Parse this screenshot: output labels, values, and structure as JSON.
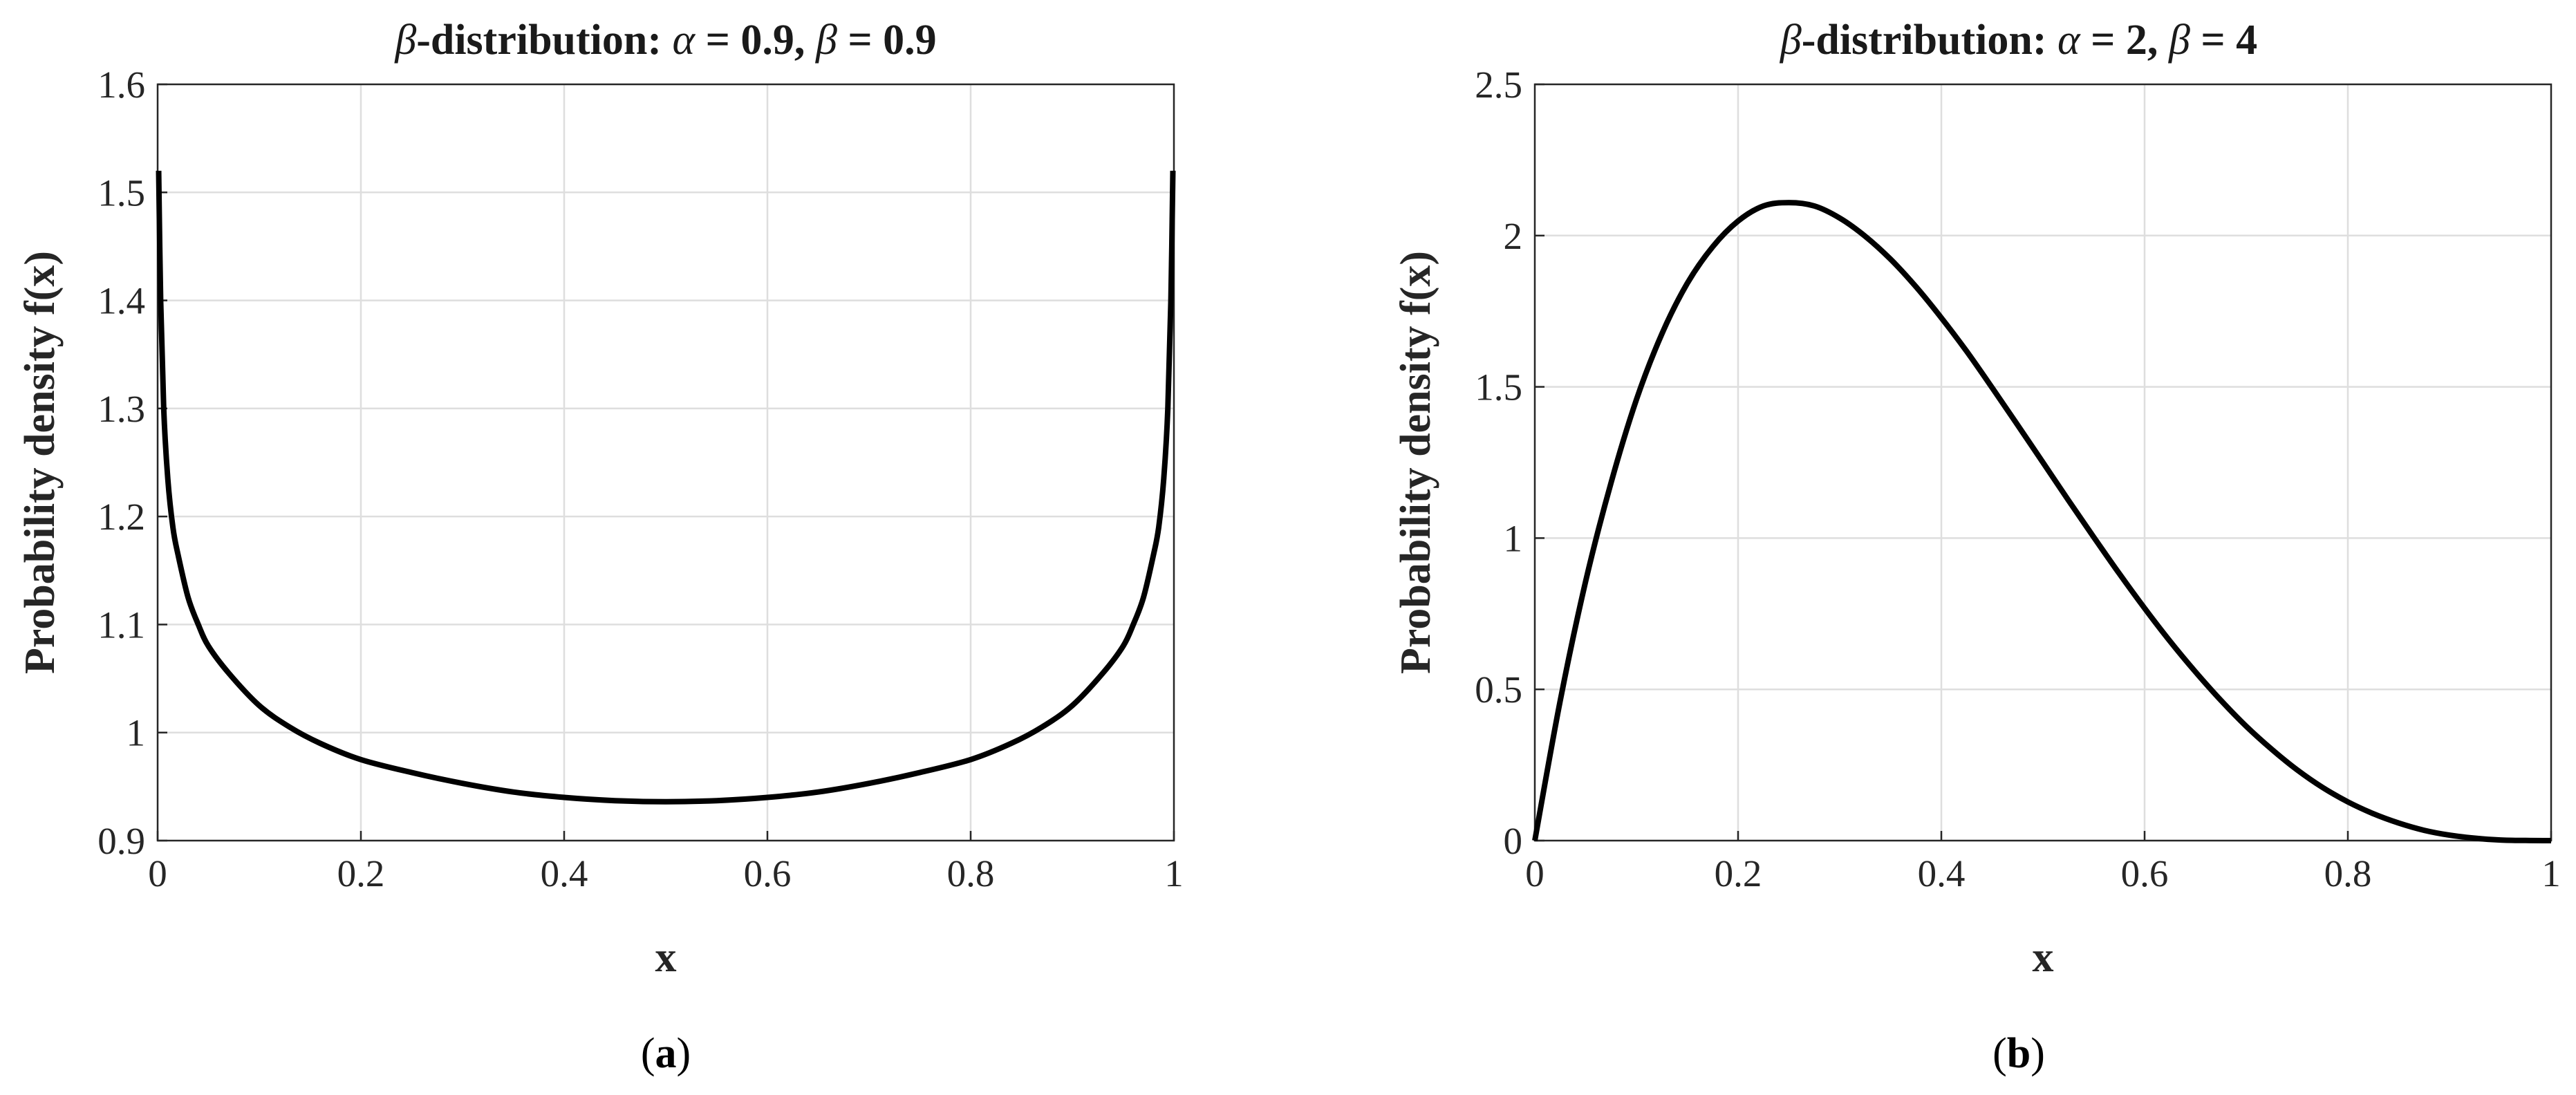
{
  "chart_data": [
    {
      "type": "line",
      "panel_label": "a",
      "title_prefix": "β",
      "title_text": "-distribution: ",
      "title_alpha_sym": "α",
      "title_alpha_val": " = 0.9, ",
      "title_beta_sym": "β",
      "title_beta_val": " = 0.9",
      "xlabel": "x",
      "ylabel": "Probability density f(x)",
      "xlim": [
        0,
        1
      ],
      "ylim": [
        0.9,
        1.6
      ],
      "xticks": [
        0,
        0.2,
        0.4,
        0.6,
        0.8,
        1
      ],
      "xtick_labels": [
        "0",
        "0.2",
        "0.4",
        "0.6",
        "0.8",
        "1"
      ],
      "yticks": [
        0.9,
        1.0,
        1.1,
        1.2,
        1.3,
        1.4,
        1.5,
        1.6
      ],
      "ytick_labels": [
        "0.9",
        "1",
        "1.1",
        "1.2",
        "1.3",
        "1.4",
        "1.5",
        "1.6"
      ],
      "grid": true,
      "series": [
        {
          "x": [
            0.001,
            0.003,
            0.006,
            0.01,
            0.015,
            0.02,
            0.03,
            0.04,
            0.05,
            0.07,
            0.1,
            0.13,
            0.16,
            0.2,
            0.25,
            0.3,
            0.35,
            0.4,
            0.45,
            0.5,
            0.55,
            0.6,
            0.65,
            0.7,
            0.75,
            0.8,
            0.84,
            0.87,
            0.9,
            0.93,
            0.95,
            0.96,
            0.97,
            0.98,
            0.985,
            0.99,
            0.994,
            0.997,
            0.999
          ],
          "y": [
            1.52,
            1.4,
            1.3,
            1.235,
            1.19,
            1.165,
            1.125,
            1.1,
            1.08,
            1.055,
            1.025,
            1.005,
            0.99,
            0.975,
            0.963,
            0.953,
            0.945,
            0.94,
            0.937,
            0.936,
            0.937,
            0.94,
            0.945,
            0.953,
            0.963,
            0.975,
            0.99,
            1.005,
            1.025,
            1.055,
            1.08,
            1.1,
            1.125,
            1.165,
            1.19,
            1.235,
            1.3,
            1.4,
            1.52
          ]
        }
      ]
    },
    {
      "type": "line",
      "panel_label": "b",
      "title_prefix": "β",
      "title_text": "-distribution: ",
      "title_alpha_sym": "α",
      "title_alpha_val": " = 2, ",
      "title_beta_sym": "β",
      "title_beta_val": " = 4",
      "xlabel": "x",
      "ylabel": "Probability density f(x)",
      "xlim": [
        0,
        1
      ],
      "ylim": [
        0,
        2.5
      ],
      "xticks": [
        0,
        0.2,
        0.4,
        0.6,
        0.8,
        1
      ],
      "xtick_labels": [
        "0",
        "0.2",
        "0.4",
        "0.6",
        "0.8",
        "1"
      ],
      "yticks": [
        0,
        0.5,
        1.0,
        1.5,
        2.0,
        2.5
      ],
      "ytick_labels": [
        "0",
        "0.5",
        "1",
        "1.5",
        "2",
        "2.5"
      ],
      "grid": true,
      "series": [
        {
          "x": [
            0,
            0.025,
            0.05,
            0.075,
            0.1,
            0.125,
            0.15,
            0.175,
            0.2,
            0.225,
            0.25,
            0.275,
            0.3,
            0.325,
            0.35,
            0.375,
            0.4,
            0.425,
            0.45,
            0.475,
            0.5,
            0.525,
            0.55,
            0.575,
            0.6,
            0.625,
            0.65,
            0.675,
            0.7,
            0.725,
            0.75,
            0.775,
            0.8,
            0.825,
            0.85,
            0.875,
            0.9,
            0.925,
            0.95,
            0.975,
            1
          ],
          "y": [
            0,
            0.463,
            0.857,
            1.183,
            1.458,
            1.675,
            1.842,
            1.963,
            2.048,
            2.098,
            2.109,
            2.098,
            2.058,
            1.998,
            1.922,
            1.831,
            1.728,
            1.617,
            1.497,
            1.374,
            1.25,
            1.125,
            1.003,
            0.883,
            0.768,
            0.659,
            0.558,
            0.464,
            0.378,
            0.302,
            0.234,
            0.176,
            0.128,
            0.089,
            0.058,
            0.034,
            0.018,
            0.008,
            0.002,
            0.0004,
            0
          ]
        }
      ]
    }
  ]
}
